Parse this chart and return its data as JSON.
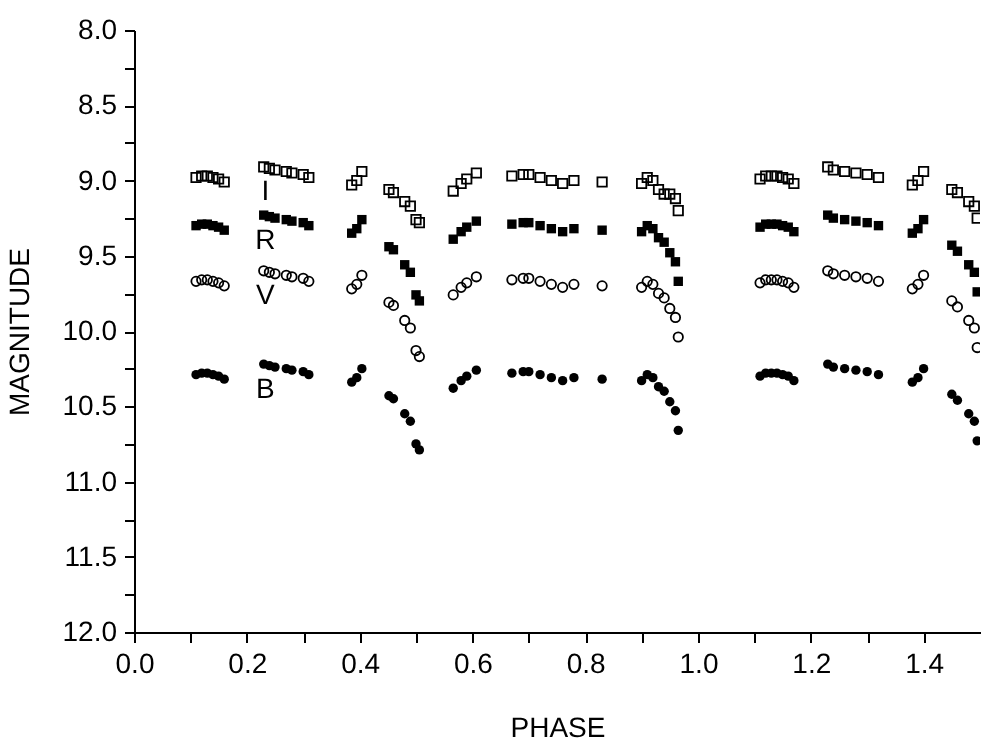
{
  "chart_data": {
    "type": "scatter",
    "xlabel": "PHASE",
    "ylabel": "MAGNITUDE",
    "x": [
      0.11,
      0.12,
      0.13,
      0.14,
      0.15,
      0.16,
      0.23,
      0.24,
      0.25,
      0.27,
      0.28,
      0.3,
      0.31,
      0.386,
      0.395,
      0.404,
      0.452,
      0.46,
      0.48,
      0.49,
      0.5,
      0.506,
      0.566,
      0.58,
      0.59,
      0.607,
      0.67,
      0.69,
      0.7,
      0.72,
      0.74,
      0.76,
      0.78,
      0.83,
      0.9,
      0.91,
      0.92,
      0.93,
      0.94,
      0.95,
      0.96,
      0.965,
      1.11,
      1.12,
      1.13,
      1.14,
      1.15,
      1.16,
      1.17,
      1.23,
      1.24,
      1.26,
      1.28,
      1.3,
      1.32,
      1.38,
      1.39,
      1.4,
      1.45,
      1.46,
      1.48,
      1.49,
      1.495
    ],
    "series": [
      {
        "name": "I",
        "color": "#000000",
        "marker": "square",
        "values": [
          8.98,
          8.97,
          8.97,
          8.98,
          8.99,
          9.01,
          8.91,
          8.92,
          8.93,
          8.94,
          8.95,
          8.96,
          8.98,
          9.03,
          9.0,
          8.94,
          9.06,
          9.08,
          9.14,
          9.17,
          9.26,
          9.28,
          9.07,
          9.02,
          8.99,
          8.95,
          8.97,
          8.96,
          8.96,
          8.98,
          9.0,
          9.02,
          9.0,
          9.01,
          9.02,
          8.98,
          9.0,
          9.06,
          9.09,
          9.09,
          9.12,
          9.2,
          8.99,
          8.97,
          8.97,
          8.97,
          8.98,
          8.99,
          9.02,
          8.91,
          8.93,
          8.94,
          8.95,
          8.96,
          8.98,
          9.03,
          9.0,
          8.94,
          9.06,
          9.08,
          9.14,
          9.17,
          9.25
        ]
      },
      {
        "name": "R",
        "color": "#000000",
        "marker": "square",
        "values": [
          9.3,
          9.29,
          9.29,
          9.3,
          9.31,
          9.33,
          9.23,
          9.24,
          9.25,
          9.26,
          9.27,
          9.28,
          9.3,
          9.35,
          9.32,
          9.26,
          9.44,
          9.46,
          9.56,
          9.61,
          9.76,
          9.8,
          9.39,
          9.34,
          9.31,
          9.27,
          9.29,
          9.28,
          9.28,
          9.3,
          9.32,
          9.34,
          9.32,
          9.33,
          9.34,
          9.3,
          9.32,
          9.38,
          9.41,
          9.48,
          9.54,
          9.67,
          9.31,
          9.29,
          9.29,
          9.29,
          9.3,
          9.31,
          9.34,
          9.23,
          9.25,
          9.26,
          9.27,
          9.28,
          9.3,
          9.35,
          9.32,
          9.26,
          9.43,
          9.47,
          9.56,
          9.61,
          9.74
        ]
      },
      {
        "name": "V",
        "color": "#000000",
        "marker": "circle",
        "values": [
          9.67,
          9.66,
          9.66,
          9.67,
          9.68,
          9.7,
          9.6,
          9.61,
          9.62,
          9.63,
          9.64,
          9.65,
          9.67,
          9.72,
          9.69,
          9.63,
          9.81,
          9.83,
          9.93,
          9.98,
          10.13,
          10.17,
          9.76,
          9.71,
          9.68,
          9.64,
          9.66,
          9.65,
          9.65,
          9.67,
          9.69,
          9.71,
          9.69,
          9.7,
          9.71,
          9.67,
          9.69,
          9.75,
          9.78,
          9.85,
          9.91,
          10.04,
          9.68,
          9.66,
          9.66,
          9.66,
          9.67,
          9.68,
          9.71,
          9.6,
          9.62,
          9.63,
          9.64,
          9.65,
          9.67,
          9.72,
          9.69,
          9.63,
          9.8,
          9.84,
          9.93,
          9.98,
          10.11
        ]
      },
      {
        "name": "B",
        "color": "#000000",
        "marker": "circle",
        "values": [
          10.29,
          10.28,
          10.28,
          10.29,
          10.3,
          10.32,
          10.22,
          10.23,
          10.24,
          10.25,
          10.26,
          10.27,
          10.29,
          10.34,
          10.31,
          10.25,
          10.43,
          10.45,
          10.55,
          10.6,
          10.75,
          10.79,
          10.38,
          10.33,
          10.3,
          10.26,
          10.28,
          10.27,
          10.27,
          10.29,
          10.31,
          10.33,
          10.31,
          10.32,
          10.33,
          10.29,
          10.31,
          10.37,
          10.4,
          10.47,
          10.53,
          10.66,
          10.3,
          10.28,
          10.28,
          10.28,
          10.29,
          10.3,
          10.33,
          10.22,
          10.24,
          10.25,
          10.26,
          10.27,
          10.29,
          10.34,
          10.31,
          10.25,
          10.42,
          10.46,
          10.55,
          10.6,
          10.73
        ]
      }
    ],
    "xlim": [
      0,
      1.5
    ],
    "xticks": [
      {
        "value": 0,
        "label": "0.0"
      },
      {
        "value": 0.1,
        "label": null
      },
      {
        "value": 0.2,
        "label": "0.2"
      },
      {
        "value": 0.3,
        "label": null
      },
      {
        "value": 0.4,
        "label": "0.4"
      },
      {
        "value": 0.5,
        "label": null
      },
      {
        "value": 0.6,
        "label": "0.6"
      },
      {
        "value": 0.7,
        "label": null
      },
      {
        "value": 0.8,
        "label": "0.8"
      },
      {
        "value": 0.9,
        "label": null
      },
      {
        "value": 1.0,
        "label": "1.0"
      },
      {
        "value": 1.1,
        "label": null
      },
      {
        "value": 1.2,
        "label": "1.2"
      },
      {
        "value": 1.3,
        "label": null
      },
      {
        "value": 1.4,
        "label": "1.4"
      }
    ],
    "ylim": [
      12.0,
      8.0
    ],
    "yticks": [
      {
        "value": 8,
        "label": "8.0"
      },
      {
        "value": 8.25,
        "label": null
      },
      {
        "value": 8.5,
        "label": "8.5"
      },
      {
        "value": 8.75,
        "label": null
      },
      {
        "value": 9,
        "label": "9.0"
      },
      {
        "value": 9.25,
        "label": null
      },
      {
        "value": 9.5,
        "label": "9.5"
      },
      {
        "value": 9.75,
        "label": null
      },
      {
        "value": 10,
        "label": "10.0"
      },
      {
        "value": 10.25,
        "label": null
      },
      {
        "value": 10.5,
        "label": "10.5"
      },
      {
        "value": 10.75,
        "label": null
      },
      {
        "value": 11,
        "label": "11.0"
      },
      {
        "value": 11.25,
        "label": null
      },
      {
        "value": 11.5,
        "label": "11.5"
      },
      {
        "value": 11.75,
        "label": null
      },
      {
        "value": 12,
        "label": "12.0"
      }
    ],
    "grid": false
  }
}
